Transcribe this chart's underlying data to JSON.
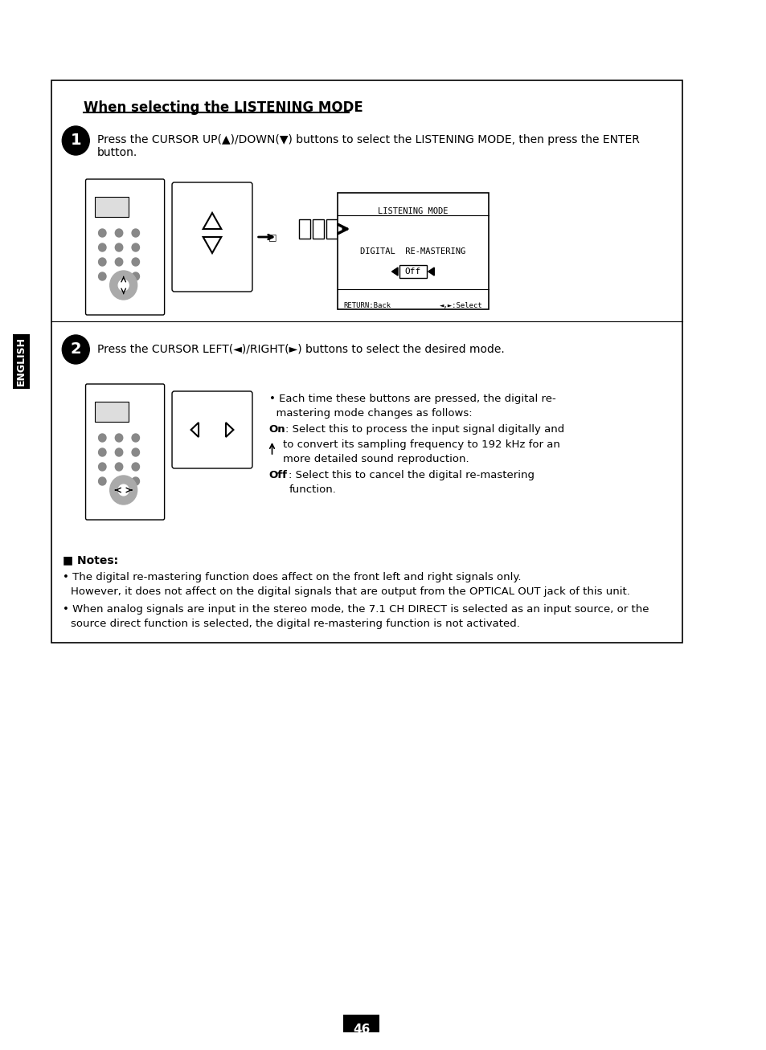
{
  "page_num": "46",
  "bg_color": "#ffffff",
  "title": "When selecting the LISTENING MODE",
  "step1_text": "Press the CURSOR UP(▲)/DOWN(▼) buttons to select the LISTENING MODE, then press the ENTER\nbutton.",
  "step2_text": "Press the CURSOR LEFT(◄)/RIGHT(►) buttons to select the desired mode.",
  "osd_line1": "LISTENING MODE",
  "osd_line2": "DIGITAL  RE-MASTERING",
  "osd_line3_left": "Off",
  "osd_bottom_left": "RETURN:Back",
  "osd_bottom_right": "◄,►:Select",
  "bullet1_text": "Each time these buttons are pressed, the digital re-\nmastering mode changes as follows:",
  "bullet1_on": "On : Select this to process the input signal digitally and\n      to convert its sampling frequency to 192 kHz for an\n      more detailed sound reproduction.",
  "bullet1_off": "Off : Select this to cancel the digital re-mastering\n        function.",
  "notes_header": "■ Notes:",
  "note1": "The digital re-mastering function does affect on the front left and right signals only.\n  However, it does not affect on the digital signals that are output from the OPTICAL OUT jack of this unit.",
  "note2": "When analog signals are input in the stereo mode, the 7.1 CH DIRECT is selected as an input source, or the\n  source direct function is selected, the digital re-mastering function is not activated.",
  "english_label": "ENGLISH",
  "border_color": "#000000",
  "text_color": "#000000"
}
